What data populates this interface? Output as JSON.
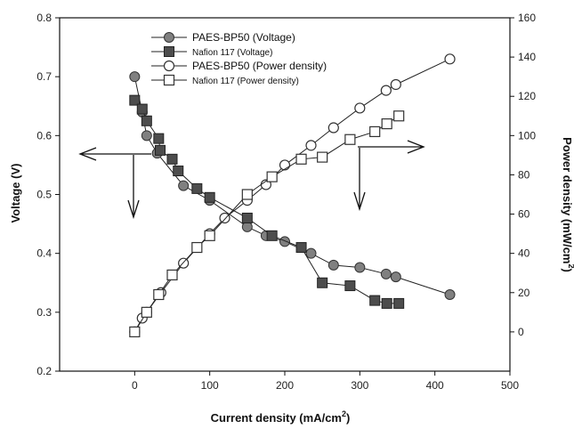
{
  "chart_data": {
    "type": "scatter",
    "xlabel": "Current density (mA/cm",
    "xlabel_sup": "2",
    "xlabel_end": ")",
    "ylabel_left": "Voltage (V)",
    "ylabel_right": "Power density (mW/cm",
    "ylabel_right_sup": "2",
    "ylabel_right_end": ")",
    "xlim": [
      -100,
      500
    ],
    "ylim_left": [
      0.2,
      0.8
    ],
    "ylim_right": [
      -20,
      160
    ],
    "x_ticks": [
      0,
      100,
      200,
      300,
      400,
      500
    ],
    "y_left_ticks": [
      0.2,
      0.3,
      0.4,
      0.5,
      0.6,
      0.7,
      0.8
    ],
    "y_right_ticks": [
      0,
      20,
      40,
      60,
      80,
      100,
      120,
      140,
      160
    ],
    "legend_position": "top-center",
    "series": [
      {
        "name": "PAES-BP50 (Voltage)",
        "axis": "left",
        "marker": "filled-circle",
        "color": "#808080",
        "x": [
          0,
          10,
          16,
          30,
          65,
          100,
          150,
          175,
          200,
          235,
          265,
          300,
          335,
          348,
          420
        ],
        "y": [
          0.7,
          0.64,
          0.6,
          0.57,
          0.515,
          0.49,
          0.445,
          0.43,
          0.42,
          0.4,
          0.38,
          0.376,
          0.365,
          0.36,
          0.33
        ]
      },
      {
        "name": "Nafion 117 (Voltage)",
        "axis": "left",
        "marker": "filled-square",
        "color": "#4d4d4d",
        "x": [
          0,
          10,
          16,
          32,
          34,
          50,
          58,
          83,
          100,
          150,
          183,
          222,
          250,
          287,
          320,
          336,
          352
        ],
        "y": [
          0.66,
          0.645,
          0.625,
          0.595,
          0.575,
          0.56,
          0.54,
          0.51,
          0.495,
          0.46,
          0.43,
          0.41,
          0.35,
          0.345,
          0.32,
          0.315,
          0.315
        ]
      },
      {
        "name": "PAES-BP50 (Power density)",
        "axis": "right",
        "marker": "open-circle",
        "color": "#333333",
        "x": [
          0,
          10,
          16,
          35,
          65,
          100,
          120,
          150,
          175,
          200,
          235,
          265,
          300,
          335,
          348,
          420
        ],
        "y": [
          0,
          7,
          10,
          20,
          35,
          50,
          58,
          67,
          75,
          85,
          95,
          104,
          114,
          123,
          126,
          139
        ]
      },
      {
        "name": "Nafion 117 (Power density)",
        "axis": "right",
        "marker": "open-square",
        "color": "#333333",
        "x": [
          0,
          16,
          32,
          50,
          83,
          100,
          150,
          183,
          222,
          250,
          287,
          320,
          336,
          352
        ],
        "y": [
          0,
          10,
          19,
          29,
          43,
          49,
          70,
          79,
          88,
          89,
          98,
          102,
          106,
          110
        ]
      }
    ]
  }
}
